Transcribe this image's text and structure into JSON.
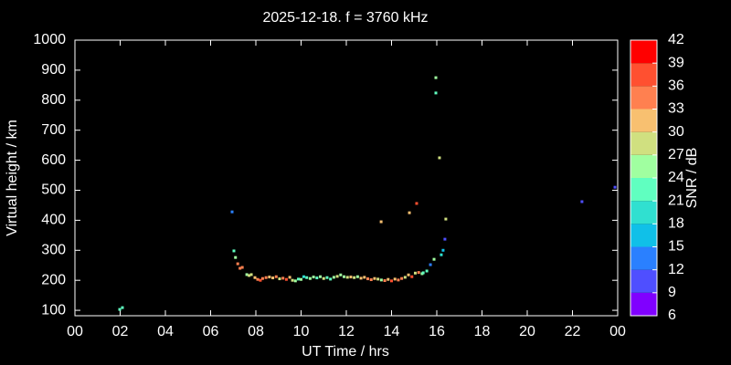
{
  "chart_data": {
    "type": "scatter",
    "title": "2025-12-18. f = 3760 kHz",
    "x_label": "UT Time / hrs",
    "y_label": "Virtual height / km",
    "xlim": [
      0,
      24
    ],
    "ylim": [
      82,
      1000
    ],
    "xticks": [
      {
        "value": 0,
        "label": "00"
      },
      {
        "value": 2,
        "label": "02"
      },
      {
        "value": 4,
        "label": "04"
      },
      {
        "value": 6,
        "label": "06"
      },
      {
        "value": 8,
        "label": "08"
      },
      10,
      12,
      14,
      16,
      18,
      20,
      22,
      {
        "value": 24,
        "label": "00"
      }
    ],
    "yticks": [
      100,
      200,
      300,
      400,
      500,
      600,
      700,
      800,
      900,
      1000
    ],
    "x": [
      1.98,
      2.1,
      6.95,
      7.03,
      7.1,
      7.2,
      7.3,
      7.4,
      7.6,
      7.7,
      7.8,
      7.96,
      8.08,
      8.2,
      8.3,
      8.45,
      8.6,
      8.75,
      8.9,
      9.05,
      9.2,
      9.35,
      9.5,
      9.62,
      9.75,
      9.88,
      10.0,
      10.12,
      10.25,
      10.4,
      10.55,
      10.7,
      10.85,
      11.0,
      11.15,
      11.3,
      11.45,
      11.6,
      11.75,
      11.9,
      12.05,
      12.2,
      12.35,
      12.5,
      12.65,
      12.8,
      12.95,
      13.1,
      13.25,
      13.4,
      13.55,
      13.7,
      13.85,
      14.0,
      14.15,
      14.3,
      14.45,
      14.6,
      14.75,
      14.9,
      15.05,
      15.2,
      15.35,
      13.54,
      14.79,
      15.11,
      15.96,
      15.96,
      16.12,
      16.4,
      16.36,
      16.28,
      16.2,
      15.88,
      15.72,
      15.56,
      15.4,
      22.42,
      23.88
    ],
    "values": [
      103,
      109,
      428,
      298,
      276,
      255,
      240,
      243,
      219,
      216,
      219,
      209,
      203,
      200,
      206,
      209,
      211,
      208,
      212,
      205,
      207,
      203,
      210,
      200,
      198,
      204,
      203,
      212,
      209,
      206,
      211,
      208,
      212,
      206,
      209,
      204,
      210,
      213,
      218,
      212,
      210,
      211,
      209,
      212,
      207,
      210,
      205,
      202,
      206,
      204,
      201,
      199,
      203,
      198,
      204,
      201,
      206,
      210,
      218,
      212,
      224,
      226,
      222,
      395,
      425,
      456,
      875,
      824,
      608,
      404,
      337,
      300,
      285,
      270,
      252,
      231,
      225,
      462,
      510
    ],
    "snr": [
      21,
      21,
      12,
      22,
      25,
      33,
      34,
      33,
      26,
      28,
      27,
      30,
      33,
      37,
      34,
      33,
      31,
      30,
      34,
      28,
      33,
      36,
      30,
      27,
      24,
      22,
      26,
      20,
      22,
      24,
      26,
      21,
      25,
      27,
      23,
      22,
      25,
      28,
      24,
      26,
      29,
      30,
      27,
      24,
      30,
      31,
      33,
      35,
      30,
      28,
      26,
      34,
      32,
      36,
      30,
      35,
      33,
      28,
      30,
      38,
      27,
      33,
      26,
      31,
      30,
      37,
      25,
      22,
      28,
      28,
      11,
      17,
      20,
      25,
      12,
      22,
      22,
      11,
      11
    ],
    "colorbar": {
      "label": "SNR / dB",
      "lim": [
        6,
        42
      ],
      "ticks": [
        6,
        9,
        12,
        15,
        18,
        21,
        24,
        27,
        30,
        33,
        36,
        39,
        42
      ],
      "colors": [
        "#8000ff",
        "#4f4fff",
        "#2a80ff",
        "#10c0e8",
        "#30e0d0",
        "#60ffc0",
        "#a0ffa0",
        "#d0e080",
        "#f8c070",
        "#ff8050",
        "#ff5030",
        "#ff0000"
      ]
    }
  }
}
